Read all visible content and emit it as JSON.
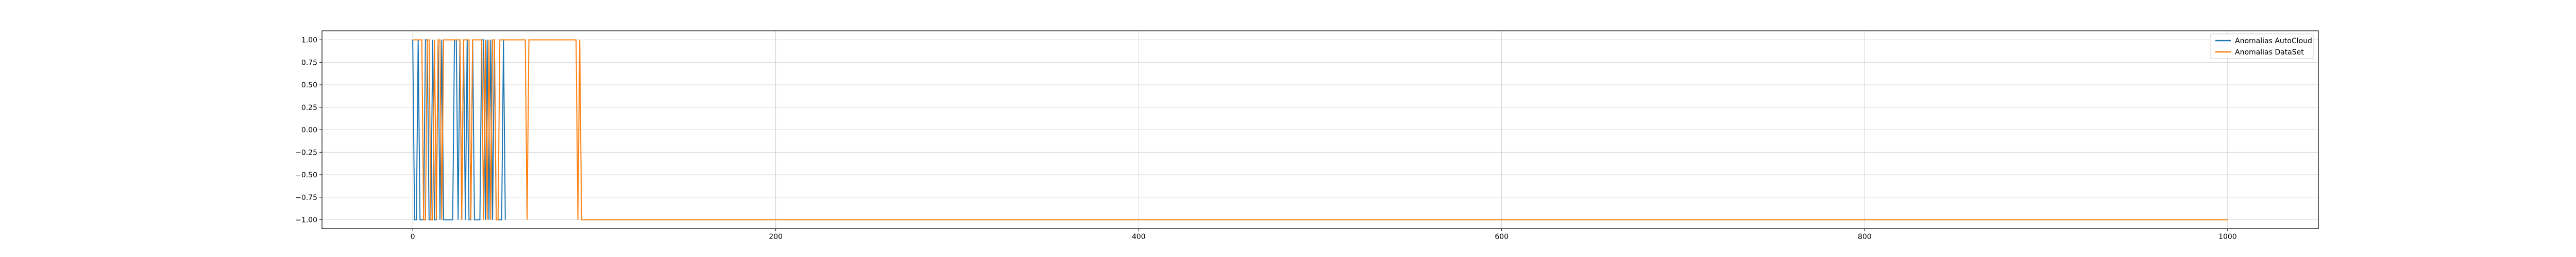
{
  "chart_data": {
    "type": "line",
    "title": "",
    "xlabel": "",
    "ylabel": "",
    "xlim": [
      -50,
      1050
    ],
    "ylim": [
      -1.1,
      1.1
    ],
    "x_ticks": [
      0,
      200,
      400,
      600,
      800,
      1000
    ],
    "x_tick_labels": [
      "0",
      "200",
      "400",
      "600",
      "800",
      "1000"
    ],
    "y_ticks": [
      1.0,
      0.75,
      0.5,
      0.25,
      0.0,
      -0.25,
      -0.5,
      -0.75,
      -1.0
    ],
    "y_tick_labels": [
      "1.00",
      "0.75",
      "0.50",
      "0.25",
      "0.00",
      "−0.25",
      "−0.50",
      "−0.75",
      "−1.00"
    ],
    "grid": true,
    "legend_position": "top-right",
    "series": [
      {
        "name": "Anomalias AutoCloud",
        "color": "#1f77b4",
        "points": [
          [
            0,
            1
          ],
          [
            1,
            -1
          ],
          [
            2,
            -1
          ],
          [
            3,
            1
          ],
          [
            4,
            -1
          ],
          [
            5,
            -1
          ],
          [
            6,
            -1
          ],
          [
            7,
            1
          ],
          [
            8,
            1
          ],
          [
            9,
            -1
          ],
          [
            10,
            -1
          ],
          [
            11,
            1
          ],
          [
            12,
            -1
          ],
          [
            13,
            -1
          ],
          [
            14,
            1
          ],
          [
            15,
            -1
          ],
          [
            16,
            1
          ],
          [
            17,
            -1
          ],
          [
            18,
            -1
          ],
          [
            19,
            -1
          ],
          [
            20,
            -1
          ],
          [
            21,
            -1
          ],
          [
            22,
            -1
          ],
          [
            23,
            1
          ],
          [
            24,
            1
          ],
          [
            25,
            -1
          ],
          [
            26,
            1
          ],
          [
            27,
            -1
          ],
          [
            28,
            1
          ],
          [
            29,
            -1
          ],
          [
            30,
            1
          ],
          [
            31,
            -1
          ],
          [
            32,
            -1
          ],
          [
            33,
            1
          ],
          [
            34,
            -1
          ],
          [
            35,
            -1
          ],
          [
            36,
            -1
          ],
          [
            37,
            -1
          ],
          [
            38,
            1
          ],
          [
            39,
            1
          ],
          [
            40,
            -1
          ],
          [
            41,
            1
          ],
          [
            42,
            -1
          ],
          [
            43,
            1
          ],
          [
            44,
            -1
          ],
          [
            45,
            1
          ],
          [
            46,
            -1
          ],
          [
            47,
            -1
          ],
          [
            48,
            -1
          ],
          [
            49,
            -1
          ],
          [
            50,
            1
          ],
          [
            51,
            -1
          ]
        ]
      },
      {
        "name": "Anomalias DataSet",
        "color": "#ff7f0e",
        "points": [
          [
            0,
            1
          ],
          [
            5,
            1
          ],
          [
            6,
            -1
          ],
          [
            7,
            -1
          ],
          [
            8,
            1
          ],
          [
            9,
            1
          ],
          [
            10,
            -1
          ],
          [
            11,
            -1
          ],
          [
            12,
            1
          ],
          [
            13,
            -1
          ],
          [
            14,
            1
          ],
          [
            15,
            1
          ],
          [
            16,
            -1
          ],
          [
            17,
            1
          ],
          [
            18,
            1
          ],
          [
            19,
            1
          ],
          [
            20,
            1
          ],
          [
            21,
            1
          ],
          [
            22,
            1
          ],
          [
            23,
            1
          ],
          [
            24,
            1
          ],
          [
            25,
            1
          ],
          [
            26,
            1
          ],
          [
            27,
            -1
          ],
          [
            28,
            1
          ],
          [
            29,
            1
          ],
          [
            30,
            1
          ],
          [
            31,
            1
          ],
          [
            32,
            -1
          ],
          [
            33,
            1
          ],
          [
            34,
            1
          ],
          [
            35,
            1
          ],
          [
            36,
            1
          ],
          [
            37,
            1
          ],
          [
            38,
            1
          ],
          [
            39,
            -1
          ],
          [
            40,
            1
          ],
          [
            41,
            -1
          ],
          [
            42,
            1
          ],
          [
            43,
            -1
          ],
          [
            44,
            1
          ],
          [
            45,
            1
          ],
          [
            46,
            -1
          ],
          [
            47,
            -1
          ],
          [
            48,
            1
          ],
          [
            62,
            1
          ],
          [
            63,
            -1
          ],
          [
            64,
            1
          ],
          [
            90,
            1
          ],
          [
            91,
            -1
          ],
          [
            92,
            1
          ],
          [
            93,
            -1
          ],
          [
            1000,
            -1
          ]
        ]
      }
    ]
  }
}
